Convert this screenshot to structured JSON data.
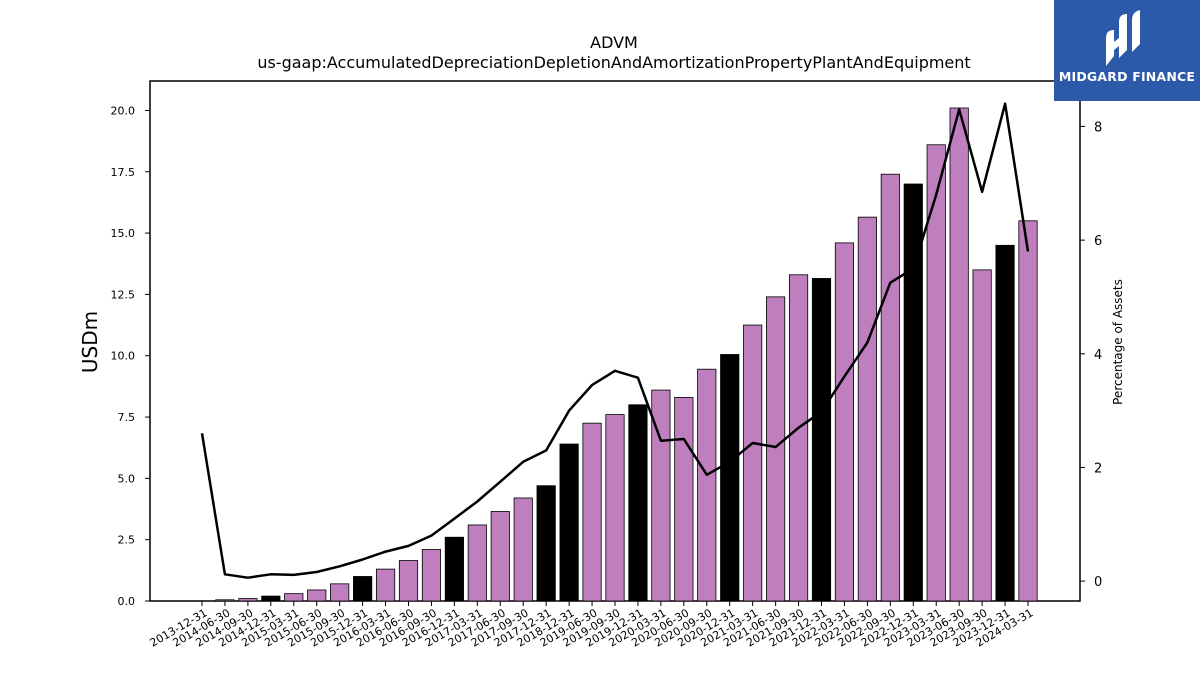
{
  "logo": {
    "text": "MIDGARD FINANCE",
    "bg": "#2c5aa9"
  },
  "chart_data": {
    "type": "bar",
    "title": "ADVM",
    "subtitle": "us-gaap:AccumulatedDepreciationDepletionAndAmortizationPropertyPlantAndEquipment",
    "ylabel": "USDm",
    "y2label": "Percentage of Assets",
    "ylim": [
      0,
      21.2
    ],
    "y2lim": [
      -0.35,
      8.8
    ],
    "yticks": [
      "0.0",
      "2.5",
      "5.0",
      "7.5",
      "10.0",
      "12.5",
      "15.0",
      "17.5",
      "20.0"
    ],
    "y2ticks": [
      "0",
      "2",
      "4",
      "6",
      "8"
    ],
    "grid": false,
    "bar_color_quarter": "#bf7fbf",
    "bar_color_year_end": "#000000",
    "line_color": "#000000",
    "categories": [
      "2013-12-31",
      "2014-06-30",
      "2014-09-30",
      "2014-12-31",
      "2015-03-31",
      "2015-06-30",
      "2015-09-30",
      "2015-12-31",
      "2016-03-31",
      "2016-06-30",
      "2016-09-30",
      "2016-12-31",
      "2017-03-31",
      "2017-06-30",
      "2017-09-30",
      "2017-12-31",
      "2018-12-31",
      "2019-06-30",
      "2019-09-30",
      "2019-12-31",
      "2020-03-31",
      "2020-06-30",
      "2020-09-30",
      "2020-12-31",
      "2021-03-31",
      "2021-06-30",
      "2021-09-30",
      "2021-12-31",
      "2022-03-31",
      "2022-06-30",
      "2022-09-30",
      "2022-12-31",
      "2023-03-31",
      "2023-06-30",
      "2023-09-30",
      "2023-12-31",
      "2024-03-31"
    ],
    "series": [
      {
        "type": "bar",
        "values": [
          0.0,
          0.05,
          0.1,
          0.2,
          0.3,
          0.45,
          0.7,
          1.0,
          1.3,
          1.65,
          2.1,
          2.6,
          3.1,
          3.65,
          4.2,
          4.7,
          6.4,
          7.25,
          7.6,
          8.0,
          8.6,
          8.3,
          9.45,
          10.05,
          11.25,
          12.4,
          13.3,
          13.15,
          14.6,
          15.65,
          17.4,
          17.0,
          18.6,
          20.1,
          13.5,
          14.5,
          15.5
        ],
        "year_end": [
          true,
          false,
          false,
          true,
          false,
          false,
          false,
          true,
          false,
          false,
          false,
          true,
          false,
          false,
          false,
          true,
          true,
          false,
          false,
          true,
          false,
          false,
          false,
          true,
          false,
          false,
          false,
          true,
          false,
          false,
          false,
          true,
          false,
          false,
          false,
          true,
          false
        ]
      },
      {
        "type": "line",
        "axis": "right",
        "values": [
          2.6,
          0.12,
          0.06,
          0.12,
          0.11,
          0.16,
          0.26,
          0.38,
          0.52,
          0.62,
          0.8,
          1.1,
          1.4,
          1.75,
          2.1,
          2.3,
          3.0,
          3.45,
          3.7,
          3.58,
          2.47,
          2.5,
          1.87,
          2.1,
          2.43,
          2.36,
          2.7,
          2.98,
          3.6,
          4.2,
          5.25,
          5.5,
          6.8,
          8.3,
          6.85,
          8.4,
          5.8
        ]
      }
    ]
  }
}
